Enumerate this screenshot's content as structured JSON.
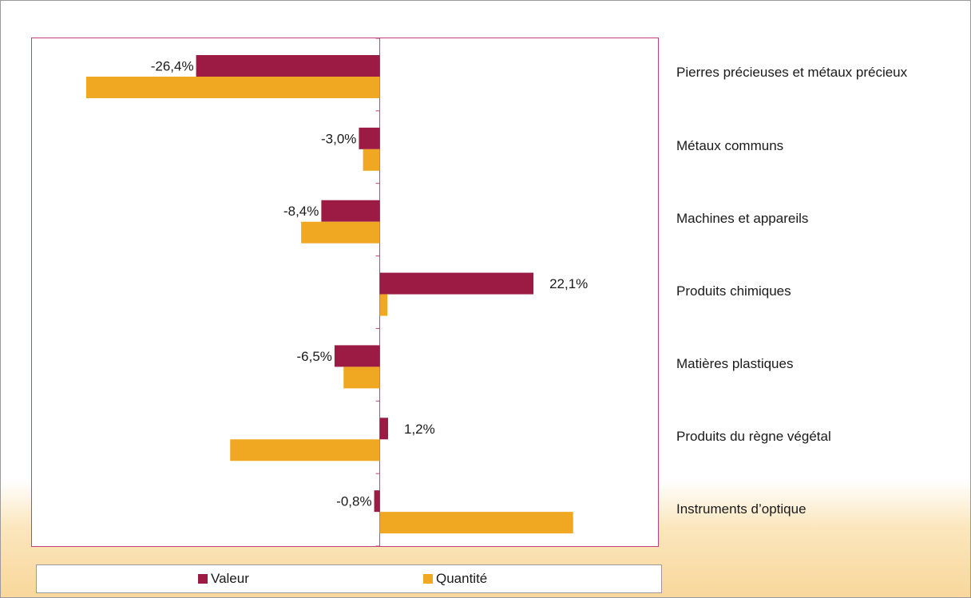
{
  "chart_data": {
    "type": "bar",
    "orientation": "horizontal",
    "title": "",
    "xlabel": "",
    "ylabel": "",
    "categories": [
      "Pierres précieuses et métaux précieux",
      "Métaux communs",
      "Machines et appareils",
      "Produits chimiques",
      "Matières plastiques",
      "Produits du règne végétal",
      "Instruments d’optique"
    ],
    "series": [
      {
        "name": "Valeur",
        "color": "#9b1b45",
        "values": [
          -26.4,
          -3.0,
          -8.4,
          22.1,
          -6.5,
          1.2,
          -0.8
        ],
        "labels": [
          "-26,4%",
          "-3,0%",
          "-8,4%",
          "22,1%",
          "-6,5%",
          "1,2%",
          "-0,8%"
        ]
      },
      {
        "name": "Quantité",
        "color": "#f0a722",
        "values": [
          -42.2,
          -2.4,
          -11.3,
          1.1,
          -5.2,
          -21.5,
          27.8
        ],
        "labels": []
      }
    ],
    "xlim": [
      -50,
      40
    ],
    "grid": false,
    "legend_position": "bottom",
    "background": "#fbe6bd"
  }
}
